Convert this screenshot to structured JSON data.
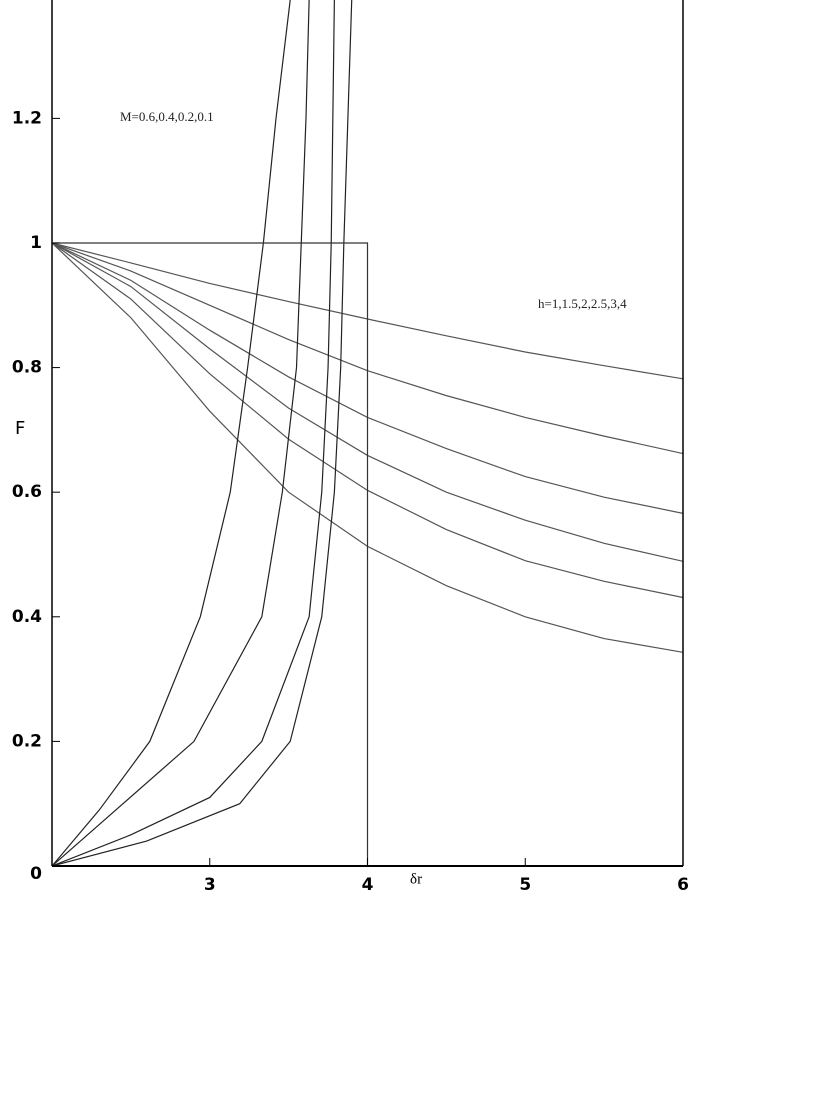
{
  "chart_data": {
    "type": "line",
    "x_label": "δr",
    "y_label": "F",
    "annotations": [
      "M=0.6,0.4,0.2,0.1",
      "h=1,1.5,2,2.5,3,4"
    ],
    "xlim": [
      2,
      6
    ],
    "ylim": [
      0,
      1.39
    ],
    "xticks": [
      3,
      4,
      5,
      6
    ],
    "yticks": [
      0,
      0.2,
      0.4,
      0.6,
      0.8,
      1,
      1.2
    ],
    "series": [
      {
        "color": "#555555",
        "x": [
          2,
          2.5,
          3,
          3.5,
          4,
          4.5,
          5,
          5.5,
          6
        ],
        "values": [
          1,
          0.968,
          0.935,
          0.906,
          0.878,
          0.851,
          0.825,
          0.803,
          0.782
        ]
      },
      {
        "color": "#555555",
        "x": [
          2,
          2.5,
          3,
          3.5,
          4,
          4.5,
          5,
          5.5,
          6
        ],
        "values": [
          1,
          0.955,
          0.9,
          0.845,
          0.795,
          0.755,
          0.72,
          0.69,
          0.662
        ]
      },
      {
        "color": "#555555",
        "x": [
          2,
          2.5,
          3,
          3.5,
          4,
          4.5,
          5,
          5.5,
          6
        ],
        "values": [
          1,
          0.94,
          0.86,
          0.785,
          0.72,
          0.67,
          0.625,
          0.592,
          0.566
        ]
      },
      {
        "color": "#555555",
        "x": [
          2,
          2.5,
          3,
          3.5,
          4,
          4.5,
          5,
          5.5,
          6
        ],
        "values": [
          1,
          0.93,
          0.83,
          0.735,
          0.659,
          0.6,
          0.555,
          0.518,
          0.489
        ]
      },
      {
        "color": "#555555",
        "x": [
          2,
          2.5,
          3,
          3.5,
          4,
          4.5,
          5,
          5.5,
          6
        ],
        "values": [
          1,
          0.91,
          0.79,
          0.685,
          0.603,
          0.54,
          0.49,
          0.457,
          0.431
        ]
      },
      {
        "color": "#555555",
        "x": [
          2,
          2.5,
          3,
          3.5,
          4,
          4.5,
          5,
          5.5,
          6
        ],
        "values": [
          1,
          0.88,
          0.73,
          0.6,
          0.513,
          0.45,
          0.4,
          0.365,
          0.343
        ]
      },
      {
        "color": "#222222",
        "x": [
          2,
          2.3,
          2.62,
          2.94,
          3.13,
          3.24,
          3.34,
          3.42,
          3.51
        ],
        "values": [
          0,
          0.09,
          0.2,
          0.4,
          0.6,
          0.8,
          1,
          1.2,
          1.39
        ]
      },
      {
        "color": "#222222",
        "x": [
          2,
          2.45,
          2.9,
          3.33,
          3.46,
          3.55,
          3.58,
          3.61,
          3.63
        ],
        "values": [
          0,
          0.1,
          0.2,
          0.4,
          0.6,
          0.8,
          1,
          1.2,
          1.39
        ]
      },
      {
        "color": "#222222",
        "x": [
          2,
          2.5,
          3,
          3.33,
          3.63,
          3.71,
          3.75,
          3.77,
          3.79
        ],
        "values": [
          0,
          0.05,
          0.11,
          0.2,
          0.4,
          0.6,
          0.8,
          1,
          1.39
        ]
      },
      {
        "color": "#222222",
        "x": [
          2,
          2.6,
          3.19,
          3.51,
          3.71,
          3.79,
          3.83,
          3.85,
          3.9
        ],
        "values": [
          0,
          0.04,
          0.1,
          0.2,
          0.4,
          0.6,
          0.8,
          1,
          1.39
        ]
      },
      {
        "color": "#333333",
        "x": [
          2,
          4,
          4
        ],
        "values": [
          1,
          1,
          0
        ]
      }
    ]
  }
}
